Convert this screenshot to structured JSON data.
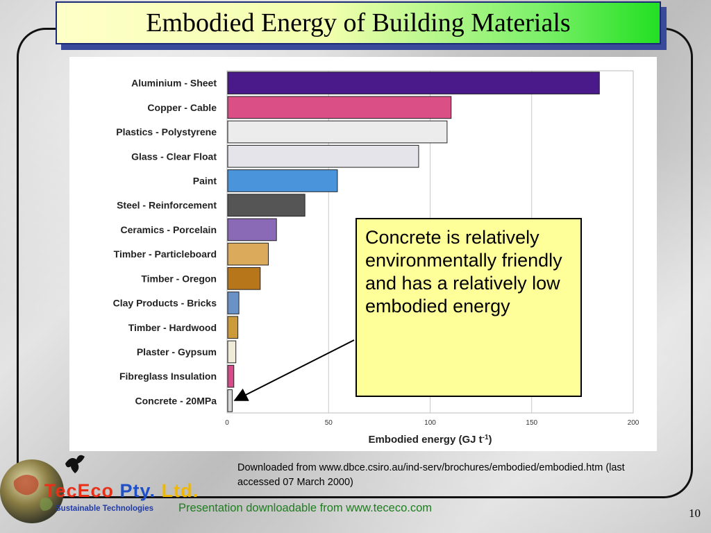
{
  "slide": {
    "title": "Embodied Energy of Building Materials",
    "callout": "Concrete is relatively environmentally friendly and has a relatively low embodied energy",
    "source_note": "Downloaded from www.dbce.csiro.au/ind-serv/brochures/embodied/embodied.htm (last accessed 07 March 2000)",
    "footer_link": "Presentation downloadable from www.tececo.com",
    "page_number": "10",
    "logo": {
      "name_part1": "TecEco",
      "name_part2": " Pty. ",
      "name_part3": "Ltd.",
      "tagline": "Sustainable Technologies"
    }
  },
  "chart_data": {
    "type": "bar",
    "orientation": "horizontal",
    "title": "",
    "xlabel": "Embodied energy (GJ t",
    "xlabel_superscript": "-1",
    "xlabel_suffix": ")",
    "ylabel": "",
    "xlim": [
      0,
      200
    ],
    "xticks": [
      "0",
      "50",
      "100",
      "150",
      "200"
    ],
    "grid": true,
    "categories": [
      "Aluminium - Sheet",
      "Copper - Cable",
      "Plastics - Polystyrene",
      "Glass - Clear Float",
      "Paint",
      "Steel - Reinforcement",
      "Ceramics - Porcelain",
      "Timber - Particleboard",
      "Timber - Oregon",
      "Clay Products - Bricks",
      "Timber - Hardwood",
      "Plaster - Gypsum",
      "Fibreglass Insulation",
      "Concrete - 20MPa"
    ],
    "values": [
      183,
      110,
      108,
      94,
      54,
      38,
      24,
      20,
      16,
      5.5,
      5,
      4,
      3,
      2.2
    ],
    "colors": [
      "#4a1a8a",
      "#d94f86",
      "#ececec",
      "#e4e4ea",
      "#4a94dc",
      "#555555",
      "#8a6ab6",
      "#dbaa5a",
      "#b8761b",
      "#6a92c6",
      "#cd9a3a",
      "#f0ead8",
      "#d64c8a",
      "#d8d8d8"
    ]
  }
}
